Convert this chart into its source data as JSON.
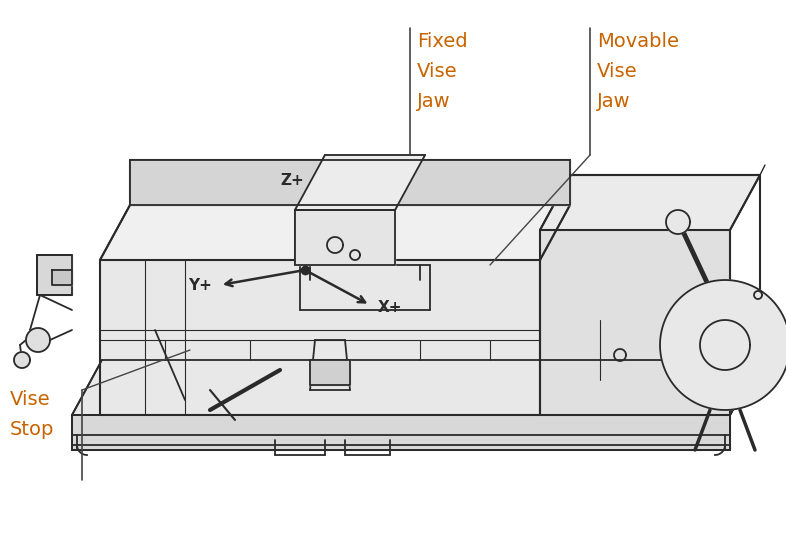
{
  "bg_color": "#ffffff",
  "label_color": "#C86400",
  "axis_color": "#1a1a1a",
  "line_color": "#2a2a2a",
  "lw": 1.3,
  "annotations": {
    "fixed_vise_jaw": {
      "lines": [
        "Fixed",
        "Vise",
        "Jaw"
      ]
    },
    "movable_vise_jaw": {
      "lines": [
        "Movable",
        "Vise",
        "Jaw"
      ]
    },
    "vise_stop": {
      "lines": [
        "Vise",
        "Stop"
      ]
    }
  }
}
